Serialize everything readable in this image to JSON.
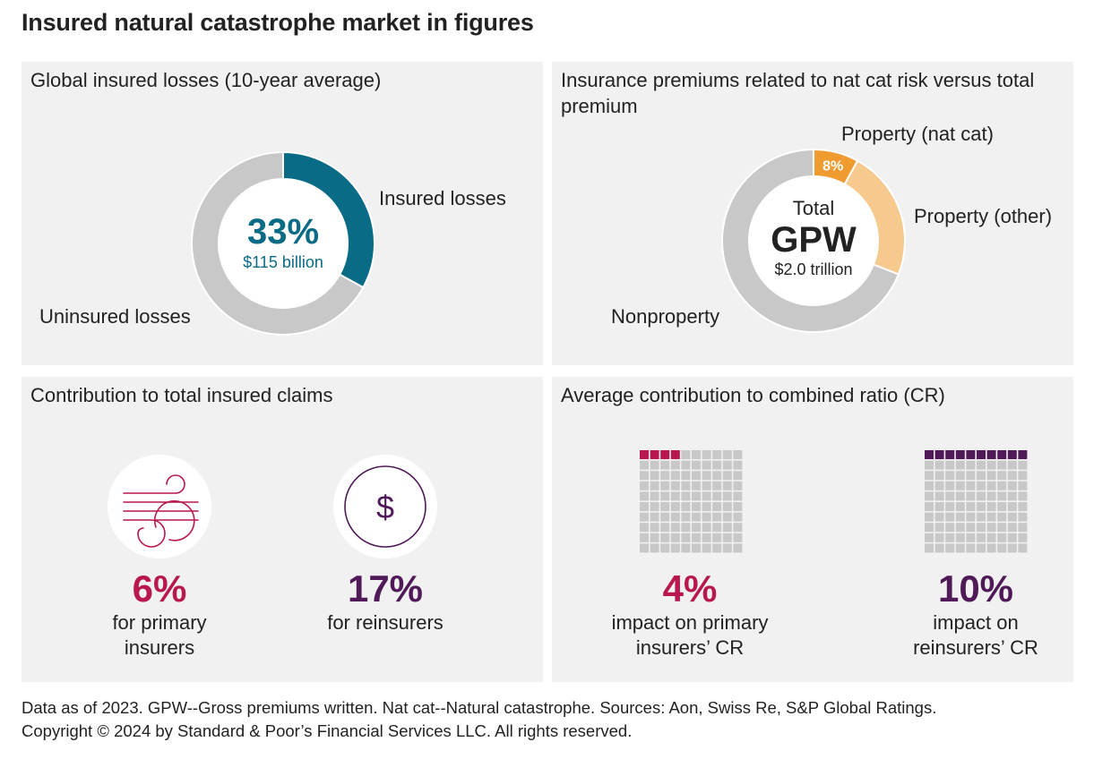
{
  "title": "Insured natural catastrophe market in figures",
  "colors": {
    "teal": "#0a6b86",
    "gray": "#c8c8c8",
    "orange_dark": "#ef9b2f",
    "orange_light": "#f6c98e",
    "crimson": "#b8174f",
    "purple": "#501a58",
    "panel_bg": "#f1f1f1"
  },
  "panels": {
    "losses": {
      "title": "Global insured losses (10-year average)",
      "center_pct": "33%",
      "center_sub": "$115 billion",
      "label_insured": "Insured losses",
      "label_uninsured": "Uninsured losses"
    },
    "premiums": {
      "title": "Insurance premiums related to nat cat risk versus total premium",
      "center_top": "Total",
      "center_big": "GPW",
      "center_sub": "$2.0 trillion",
      "label_natcat": "Property (nat cat)",
      "label_other": "Property (other)",
      "label_nonproperty": "Nonproperty",
      "natcat_pct_label": "8%"
    },
    "claims": {
      "title": "Contribution to total insured claims",
      "primary_pct": "6%",
      "primary_sub": "for primary insurers",
      "reins_pct": "17%",
      "reins_sub": "for reinsurers",
      "primary_icon": "wind-icon",
      "reins_icon": "dollar-icon"
    },
    "cr": {
      "title": "Average contribution to combined ratio (CR)",
      "primary_pct": "4%",
      "primary_sub": "impact on primary insurers’ CR",
      "reins_pct": "10%",
      "reins_sub": "impact on reinsurers’ CR"
    }
  },
  "chart_data": [
    {
      "type": "pie",
      "donut": true,
      "title": "Global insured losses (10-year average)",
      "categories": [
        "Insured losses",
        "Uninsured losses"
      ],
      "values": [
        33,
        67
      ],
      "colors": [
        "#0a6b86",
        "#c8c8c8"
      ]
    },
    {
      "type": "pie",
      "donut": true,
      "title": "Insurance premiums related to nat cat risk versus total premium",
      "categories": [
        "Property (nat cat)",
        "Property (other)",
        "Nonproperty"
      ],
      "values": [
        8,
        23,
        69
      ],
      "colors": [
        "#ef9b2f",
        "#f6c98e",
        "#c8c8c8"
      ]
    },
    {
      "type": "waffle",
      "title": "impact on primary insurers’ CR",
      "grid": [
        10,
        10
      ],
      "value": 4,
      "color": "#b8174f"
    },
    {
      "type": "waffle",
      "title": "impact on reinsurers’ CR",
      "grid": [
        10,
        10
      ],
      "value": 10,
      "color": "#501a58"
    }
  ],
  "footnote": {
    "line1": "Data as of 2023. GPW--Gross premiums written. Nat cat--Natural catastrophe. Sources: Aon, Swiss Re, S&P Global Ratings.",
    "line2": "Copyright © 2024 by Standard & Poor’s Financial Services LLC. All rights reserved."
  }
}
